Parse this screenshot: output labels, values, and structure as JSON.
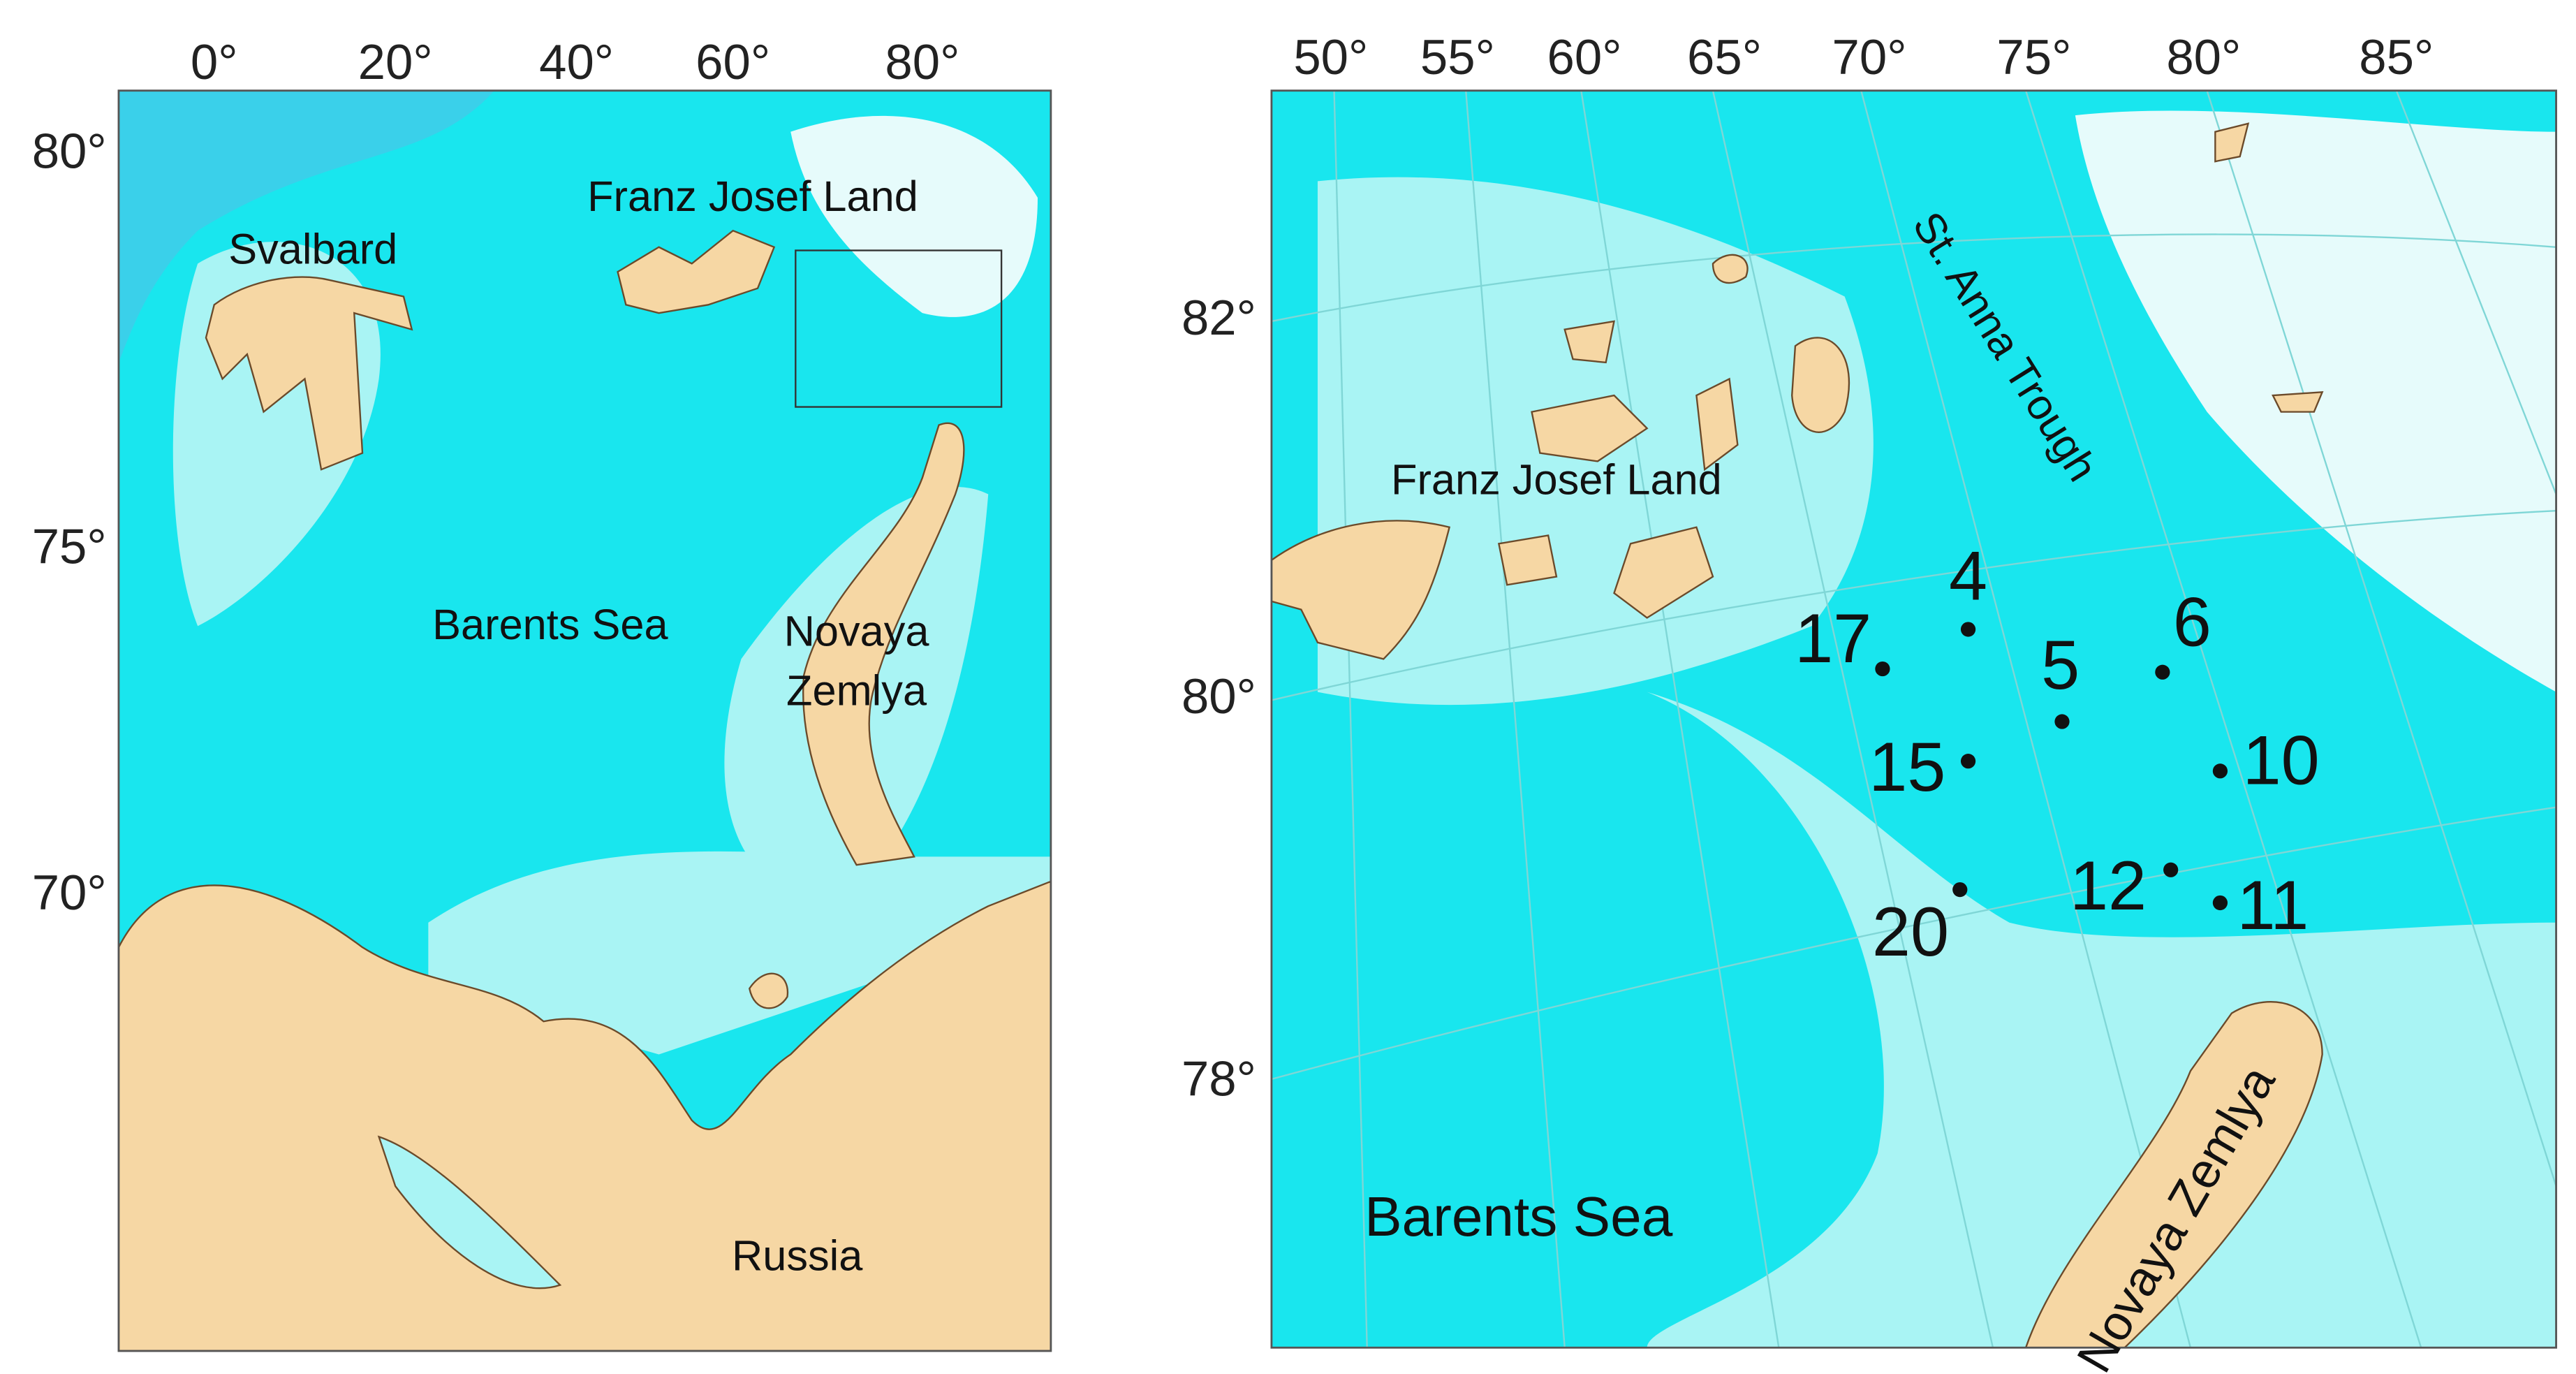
{
  "left_map": {
    "lon_labels": [
      "0°",
      "20°",
      "40°",
      "60°",
      "80°"
    ],
    "lat_labels": [
      "80°",
      "75°",
      "70°"
    ],
    "places": [
      "Svalbard",
      "Franz Josef Land",
      "Barents Sea",
      "Novaya",
      "Zemlya",
      "Russia"
    ]
  },
  "right_map": {
    "lon_labels": [
      "50°",
      "55°",
      "60°",
      "65°",
      "70°",
      "75°",
      "80°",
      "85°"
    ],
    "lat_labels": [
      "82°",
      "80°",
      "78°"
    ],
    "places": [
      "St. Anna Trough",
      "Franz Josef Land",
      "Barents Sea",
      "Novaya Zemlya"
    ],
    "stations": [
      "4",
      "5",
      "6",
      "17",
      "15",
      "10",
      "12",
      "11",
      "20"
    ]
  }
}
